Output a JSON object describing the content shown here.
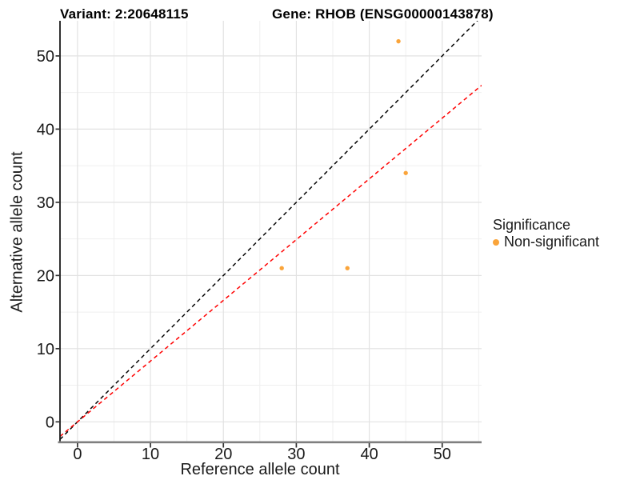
{
  "chart_data": {
    "type": "scatter",
    "title_left": "Variant: 2:20648115",
    "title_right": "Gene: RHOB (ENSG00000143878)",
    "xlabel": "Reference allele count",
    "ylabel": "Alternative allele count",
    "xlim": [
      -2.4,
      55.4
    ],
    "ylim": [
      -2.7,
      54.8
    ],
    "x_ticks": [
      0,
      10,
      20,
      30,
      40,
      50
    ],
    "y_ticks": [
      0,
      10,
      20,
      30,
      40,
      50
    ],
    "x_minor_ticks": [
      5,
      15,
      25,
      35,
      45,
      55
    ],
    "y_minor_ticks": [
      5,
      15,
      25,
      35,
      45
    ],
    "grid": "major+minor",
    "series": [
      {
        "name": "Non-significant",
        "color": "#FAA43A",
        "points": [
          [
            44,
            52
          ],
          [
            45,
            34
          ],
          [
            37,
            21
          ],
          [
            28,
            21
          ]
        ]
      }
    ],
    "reference_lines": [
      {
        "name": "identity",
        "slope": 1,
        "intercept": 0,
        "color": "#000000",
        "style": "dashed"
      },
      {
        "name": "allelic-ratio",
        "slope": 0.83,
        "intercept": 0,
        "color": "#FF0000",
        "style": "dashed"
      }
    ],
    "legend": {
      "title": "Significance",
      "position": "right",
      "items": [
        {
          "label": "Non-significant",
          "color": "#FAA43A"
        }
      ]
    },
    "colors": {
      "background": "#FFFFFF",
      "grid_major": "#E2E2E2",
      "grid_minor": "#EFEFEF",
      "axis_left": "#1A1A1A",
      "axis_bottom": "#7F7F7F",
      "tick_mark": "#333333",
      "tick_text": "#1A1A1A"
    }
  }
}
